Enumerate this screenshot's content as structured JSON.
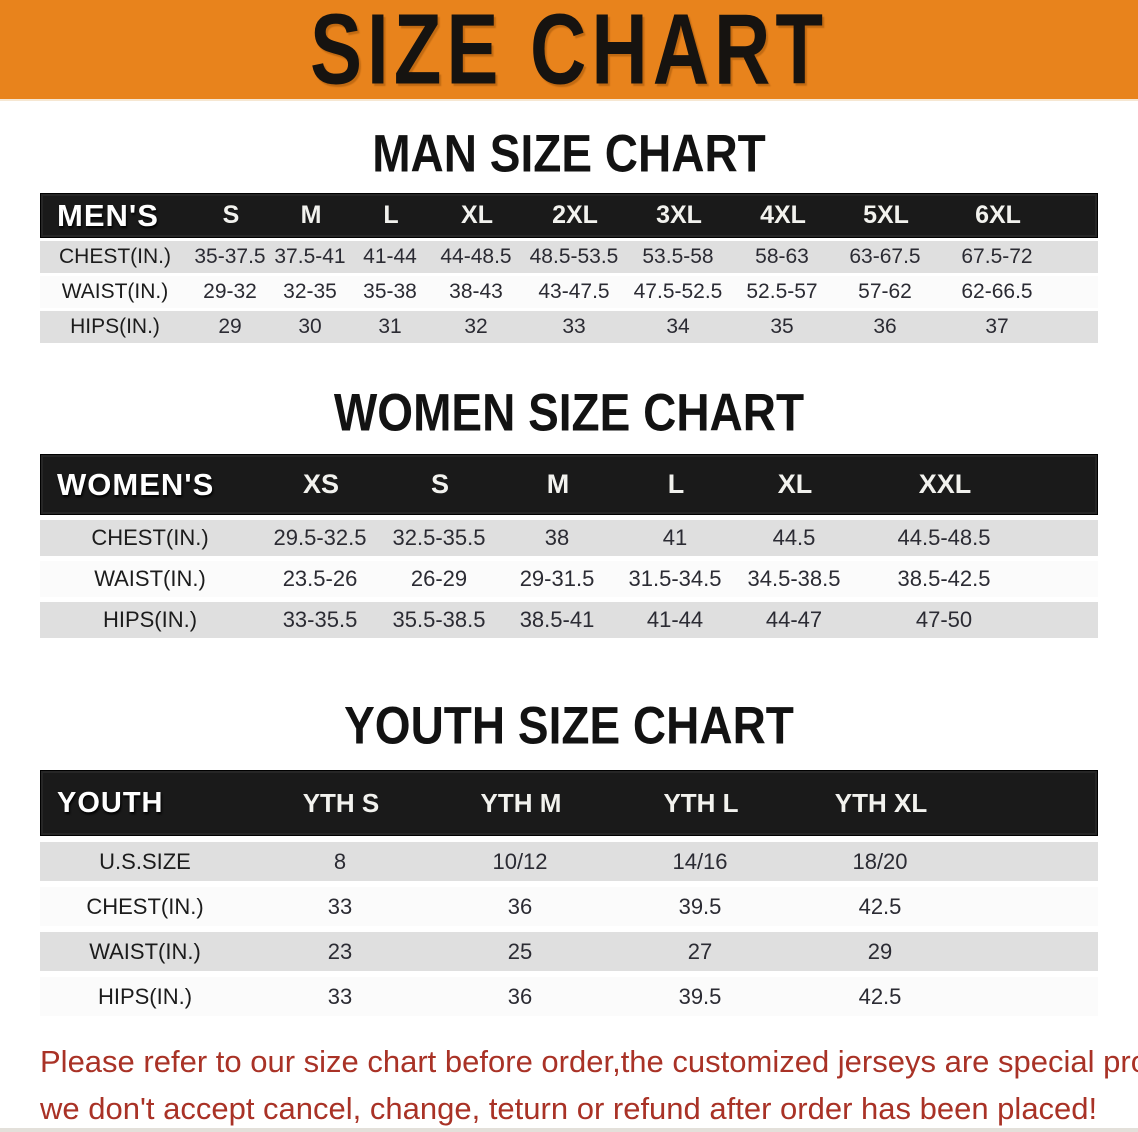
{
  "banner": {
    "title": "SIZE CHART"
  },
  "colors": {
    "banner_bg": "#E8831C",
    "table_header_bg": "#1A1A1A",
    "row_alt_gray": "#DFDFDF",
    "disclaimer_red": "#A93226"
  },
  "sections": {
    "men": {
      "title": "MAN SIZE CHART",
      "header_label": "MEN'S",
      "columns": [
        "S",
        "M",
        "L",
        "XL",
        "2XL",
        "3XL",
        "4XL",
        "5XL",
        "6XL"
      ],
      "rows": [
        {
          "label": "CHEST(IN.)",
          "values": [
            "35-37.5",
            "37.5-41",
            "41-44",
            "44-48.5",
            "48.5-53.5",
            "53.5-58",
            "58-63",
            "63-67.5",
            "67.5-72"
          ]
        },
        {
          "label": "WAIST(IN.)",
          "values": [
            "29-32",
            "32-35",
            "35-38",
            "38-43",
            "43-47.5",
            "47.5-52.5",
            "52.5-57",
            "57-62",
            "62-66.5"
          ]
        },
        {
          "label": "HIPS(IN.)",
          "values": [
            "29",
            "30",
            "31",
            "32",
            "33",
            "34",
            "35",
            "36",
            "37"
          ]
        }
      ]
    },
    "women": {
      "title": "WOMEN SIZE CHART",
      "header_label": "WOMEN'S",
      "columns": [
        "XS",
        "S",
        "M",
        "L",
        "XL",
        "XXL"
      ],
      "rows": [
        {
          "label": "CHEST(IN.)",
          "values": [
            "29.5-32.5",
            "32.5-35.5",
            "38",
            "41",
            "44.5",
            "44.5-48.5"
          ]
        },
        {
          "label": "WAIST(IN.)",
          "values": [
            "23.5-26",
            "26-29",
            "29-31.5",
            "31.5-34.5",
            "34.5-38.5",
            "38.5-42.5"
          ]
        },
        {
          "label": "HIPS(IN.)",
          "values": [
            "33-35.5",
            "35.5-38.5",
            "38.5-41",
            "41-44",
            "44-47",
            "47-50"
          ]
        }
      ]
    },
    "youth": {
      "title": "YOUTH SIZE CHART",
      "header_label": "YOUTH",
      "columns": [
        "YTH S",
        "YTH M",
        "YTH L",
        "YTH XL"
      ],
      "rows": [
        {
          "label": "U.S.SIZE",
          "values": [
            "8",
            "10/12",
            "14/16",
            "18/20"
          ]
        },
        {
          "label": "CHEST(IN.)",
          "values": [
            "33",
            "36",
            "39.5",
            "42.5"
          ]
        },
        {
          "label": "WAIST(IN.)",
          "values": [
            "23",
            "25",
            "27",
            "29"
          ]
        },
        {
          "label": "HIPS(IN.)",
          "values": [
            "33",
            "36",
            "39.5",
            "42.5"
          ]
        }
      ]
    }
  },
  "disclaimer": {
    "line1": "Please refer to our size chart before order,the customized jerseys are special products,",
    "line2": "we don't accept cancel, change, teturn or refund after order has been placed!"
  }
}
